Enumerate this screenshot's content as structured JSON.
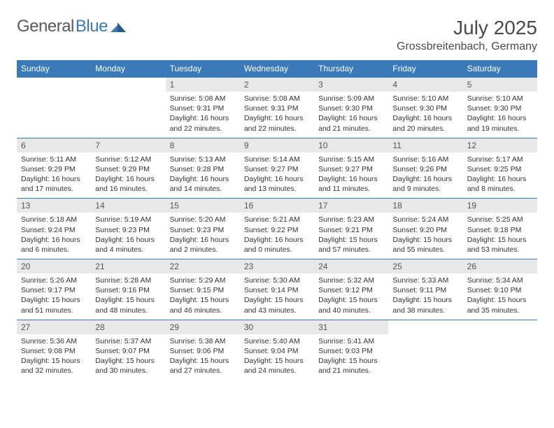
{
  "brand": {
    "textA": "General",
    "textB": "Blue"
  },
  "header": {
    "title": "July 2025",
    "location": "Grossbreitenbach, Germany"
  },
  "colors": {
    "accent": "#3a7ab8",
    "bgDayNum": "#e8e8e8",
    "textDark": "#4a4a4a"
  },
  "columns": [
    "Sunday",
    "Monday",
    "Tuesday",
    "Wednesday",
    "Thursday",
    "Friday",
    "Saturday"
  ],
  "weeks": [
    [
      null,
      null,
      {
        "n": "1",
        "sr": "5:08 AM",
        "ss": "9:31 PM",
        "dl": "16 hours and 22 minutes."
      },
      {
        "n": "2",
        "sr": "5:08 AM",
        "ss": "9:31 PM",
        "dl": "16 hours and 22 minutes."
      },
      {
        "n": "3",
        "sr": "5:09 AM",
        "ss": "9:30 PM",
        "dl": "16 hours and 21 minutes."
      },
      {
        "n": "4",
        "sr": "5:10 AM",
        "ss": "9:30 PM",
        "dl": "16 hours and 20 minutes."
      },
      {
        "n": "5",
        "sr": "5:10 AM",
        "ss": "9:30 PM",
        "dl": "16 hours and 19 minutes."
      }
    ],
    [
      {
        "n": "6",
        "sr": "5:11 AM",
        "ss": "9:29 PM",
        "dl": "16 hours and 17 minutes."
      },
      {
        "n": "7",
        "sr": "5:12 AM",
        "ss": "9:29 PM",
        "dl": "16 hours and 16 minutes."
      },
      {
        "n": "8",
        "sr": "5:13 AM",
        "ss": "9:28 PM",
        "dl": "16 hours and 14 minutes."
      },
      {
        "n": "9",
        "sr": "5:14 AM",
        "ss": "9:27 PM",
        "dl": "16 hours and 13 minutes."
      },
      {
        "n": "10",
        "sr": "5:15 AM",
        "ss": "9:27 PM",
        "dl": "16 hours and 11 minutes."
      },
      {
        "n": "11",
        "sr": "5:16 AM",
        "ss": "9:26 PM",
        "dl": "16 hours and 9 minutes."
      },
      {
        "n": "12",
        "sr": "5:17 AM",
        "ss": "9:25 PM",
        "dl": "16 hours and 8 minutes."
      }
    ],
    [
      {
        "n": "13",
        "sr": "5:18 AM",
        "ss": "9:24 PM",
        "dl": "16 hours and 6 minutes."
      },
      {
        "n": "14",
        "sr": "5:19 AM",
        "ss": "9:23 PM",
        "dl": "16 hours and 4 minutes."
      },
      {
        "n": "15",
        "sr": "5:20 AM",
        "ss": "9:23 PM",
        "dl": "16 hours and 2 minutes."
      },
      {
        "n": "16",
        "sr": "5:21 AM",
        "ss": "9:22 PM",
        "dl": "16 hours and 0 minutes."
      },
      {
        "n": "17",
        "sr": "5:23 AM",
        "ss": "9:21 PM",
        "dl": "15 hours and 57 minutes."
      },
      {
        "n": "18",
        "sr": "5:24 AM",
        "ss": "9:20 PM",
        "dl": "15 hours and 55 minutes."
      },
      {
        "n": "19",
        "sr": "5:25 AM",
        "ss": "9:18 PM",
        "dl": "15 hours and 53 minutes."
      }
    ],
    [
      {
        "n": "20",
        "sr": "5:26 AM",
        "ss": "9:17 PM",
        "dl": "15 hours and 51 minutes."
      },
      {
        "n": "21",
        "sr": "5:28 AM",
        "ss": "9:16 PM",
        "dl": "15 hours and 48 minutes."
      },
      {
        "n": "22",
        "sr": "5:29 AM",
        "ss": "9:15 PM",
        "dl": "15 hours and 46 minutes."
      },
      {
        "n": "23",
        "sr": "5:30 AM",
        "ss": "9:14 PM",
        "dl": "15 hours and 43 minutes."
      },
      {
        "n": "24",
        "sr": "5:32 AM",
        "ss": "9:12 PM",
        "dl": "15 hours and 40 minutes."
      },
      {
        "n": "25",
        "sr": "5:33 AM",
        "ss": "9:11 PM",
        "dl": "15 hours and 38 minutes."
      },
      {
        "n": "26",
        "sr": "5:34 AM",
        "ss": "9:10 PM",
        "dl": "15 hours and 35 minutes."
      }
    ],
    [
      {
        "n": "27",
        "sr": "5:36 AM",
        "ss": "9:08 PM",
        "dl": "15 hours and 32 minutes."
      },
      {
        "n": "28",
        "sr": "5:37 AM",
        "ss": "9:07 PM",
        "dl": "15 hours and 30 minutes."
      },
      {
        "n": "29",
        "sr": "5:38 AM",
        "ss": "9:06 PM",
        "dl": "15 hours and 27 minutes."
      },
      {
        "n": "30",
        "sr": "5:40 AM",
        "ss": "9:04 PM",
        "dl": "15 hours and 24 minutes."
      },
      {
        "n": "31",
        "sr": "5:41 AM",
        "ss": "9:03 PM",
        "dl": "15 hours and 21 minutes."
      },
      null,
      null
    ]
  ],
  "labels": {
    "sunrise": "Sunrise:",
    "sunset": "Sunset:",
    "daylight": "Daylight:"
  }
}
